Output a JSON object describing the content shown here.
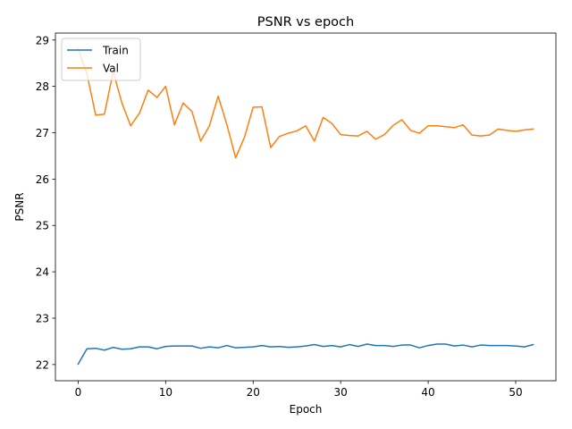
{
  "chart_data": {
    "type": "line",
    "title": "PSNR vs epoch",
    "xlabel": "Epoch",
    "ylabel": "PSNR",
    "xlim": [
      -2.6,
      54.6
    ],
    "ylim": [
      21.65,
      29.15
    ],
    "xticks": [
      0,
      10,
      20,
      30,
      40,
      50
    ],
    "yticks": [
      22,
      23,
      24,
      25,
      26,
      27,
      28,
      29
    ],
    "grid": false,
    "legend_position": "top-left",
    "series": [
      {
        "name": "Train",
        "color": "#1f77b4",
        "x": [
          0,
          1,
          2,
          3,
          4,
          5,
          6,
          7,
          8,
          9,
          10,
          11,
          12,
          13,
          14,
          15,
          16,
          17,
          18,
          19,
          20,
          21,
          22,
          23,
          24,
          25,
          26,
          27,
          28,
          29,
          30,
          31,
          32,
          33,
          34,
          35,
          36,
          37,
          38,
          39,
          40,
          41,
          42,
          43,
          44,
          45,
          46,
          47,
          48,
          49,
          50,
          51,
          52
        ],
        "values": [
          22.01,
          22.34,
          22.35,
          22.31,
          22.37,
          22.33,
          22.34,
          22.38,
          22.38,
          22.34,
          22.39,
          22.4,
          22.4,
          22.4,
          22.35,
          22.38,
          22.36,
          22.41,
          22.36,
          22.37,
          22.38,
          22.41,
          22.38,
          22.39,
          22.37,
          22.38,
          22.4,
          22.43,
          22.39,
          22.41,
          22.38,
          22.43,
          22.39,
          22.44,
          22.41,
          22.41,
          22.39,
          22.42,
          22.42,
          22.36,
          22.41,
          22.44,
          22.44,
          22.4,
          22.42,
          22.38,
          22.42,
          22.41,
          22.41,
          22.41,
          22.4,
          22.38,
          22.43
        ]
      },
      {
        "name": "Val",
        "color": "#ff7f0e",
        "x": [
          0,
          1,
          2,
          3,
          4,
          5,
          6,
          7,
          8,
          9,
          10,
          11,
          12,
          13,
          14,
          15,
          16,
          17,
          18,
          19,
          20,
          21,
          22,
          23,
          24,
          25,
          26,
          27,
          28,
          29,
          30,
          31,
          32,
          33,
          34,
          35,
          36,
          37,
          38,
          39,
          40,
          41,
          42,
          43,
          44,
          45,
          46,
          47,
          48,
          49,
          50,
          51,
          52
        ],
        "values": [
          28.82,
          28.27,
          27.38,
          27.4,
          28.32,
          27.64,
          27.15,
          27.42,
          27.92,
          27.76,
          28.0,
          27.17,
          27.64,
          27.46,
          26.82,
          27.15,
          27.79,
          27.17,
          26.46,
          26.9,
          27.55,
          27.56,
          26.68,
          26.92,
          26.99,
          27.04,
          27.15,
          26.82,
          27.33,
          27.2,
          26.96,
          26.94,
          26.93,
          27.03,
          26.86,
          26.96,
          27.16,
          27.28,
          27.05,
          26.99,
          27.15,
          27.15,
          27.13,
          27.11,
          27.17,
          26.95,
          26.93,
          26.95,
          27.08,
          27.05,
          27.03,
          27.06,
          27.08
        ]
      }
    ]
  }
}
